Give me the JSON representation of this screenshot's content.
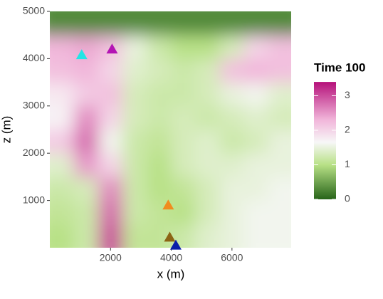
{
  "chart_data": {
    "type": "heatmap",
    "xlabel": "x (m)",
    "ylabel": "z (m)",
    "xlim": [
      0,
      7950
    ],
    "ylim": [
      0,
      5000
    ],
    "xticks": [
      2000,
      4000,
      6000
    ],
    "yticks": [
      1000,
      2000,
      3000,
      4000,
      5000
    ],
    "x": [
      400,
      1200,
      2000,
      2800,
      3600,
      4400,
      5200,
      6000,
      6800,
      7600
    ],
    "y": [
      250,
      750,
      1250,
      1750,
      2250,
      2750,
      3250,
      3750,
      4250,
      4750
    ],
    "z": [
      [
        1.0,
        1.2,
        3.0,
        1.1,
        1.1,
        1.2,
        1.4,
        1.5,
        1.6,
        1.6
      ],
      [
        1.1,
        1.2,
        2.8,
        1.2,
        1.1,
        1.0,
        1.3,
        1.5,
        1.6,
        1.6
      ],
      [
        1.2,
        1.3,
        2.6,
        1.2,
        1.0,
        1.1,
        1.3,
        1.5,
        1.5,
        1.6
      ],
      [
        1.4,
        2.5,
        2.0,
        1.2,
        1.0,
        1.3,
        1.4,
        1.4,
        1.5,
        1.5
      ],
      [
        2.1,
        2.8,
        1.6,
        1.2,
        1.1,
        1.3,
        1.4,
        1.2,
        1.3,
        1.5
      ],
      [
        1.7,
        2.6,
        2.0,
        1.3,
        1.2,
        1.3,
        1.2,
        1.3,
        1.4,
        1.3
      ],
      [
        1.8,
        2.1,
        2.2,
        1.3,
        1.2,
        1.2,
        1.3,
        1.5,
        1.6,
        1.4
      ],
      [
        2.2,
        2.3,
        2.0,
        1.4,
        1.3,
        1.2,
        1.3,
        2.2,
        2.3,
        2.2
      ],
      [
        2.3,
        2.4,
        2.2,
        1.5,
        1.2,
        1.0,
        1.0,
        1.3,
        2.0,
        2.2
      ],
      [
        0.3,
        0.3,
        0.3,
        0.3,
        0.3,
        0.3,
        0.3,
        0.3,
        0.3,
        0.3
      ]
    ],
    "colorscale": [
      [
        0,
        "#276419"
      ],
      [
        1,
        "#b8e186"
      ],
      [
        1.65,
        "#f7f7f7"
      ],
      [
        2.3,
        "#f1b6da"
      ],
      [
        3.4,
        "#b5117a"
      ]
    ],
    "legend_title": "Time 100",
    "zlim": [
      0,
      3.4
    ],
    "zticks": [
      0,
      1,
      2,
      3
    ],
    "points": {
      "x": [
        1050,
        2050,
        3900,
        3950,
        4150
      ],
      "y": [
        4080,
        4200,
        900,
        220,
        50
      ],
      "colors": [
        "#22e5e5",
        "#b415b4",
        "#f08c1e",
        "#8c6414",
        "#0a1eaa"
      ]
    }
  }
}
